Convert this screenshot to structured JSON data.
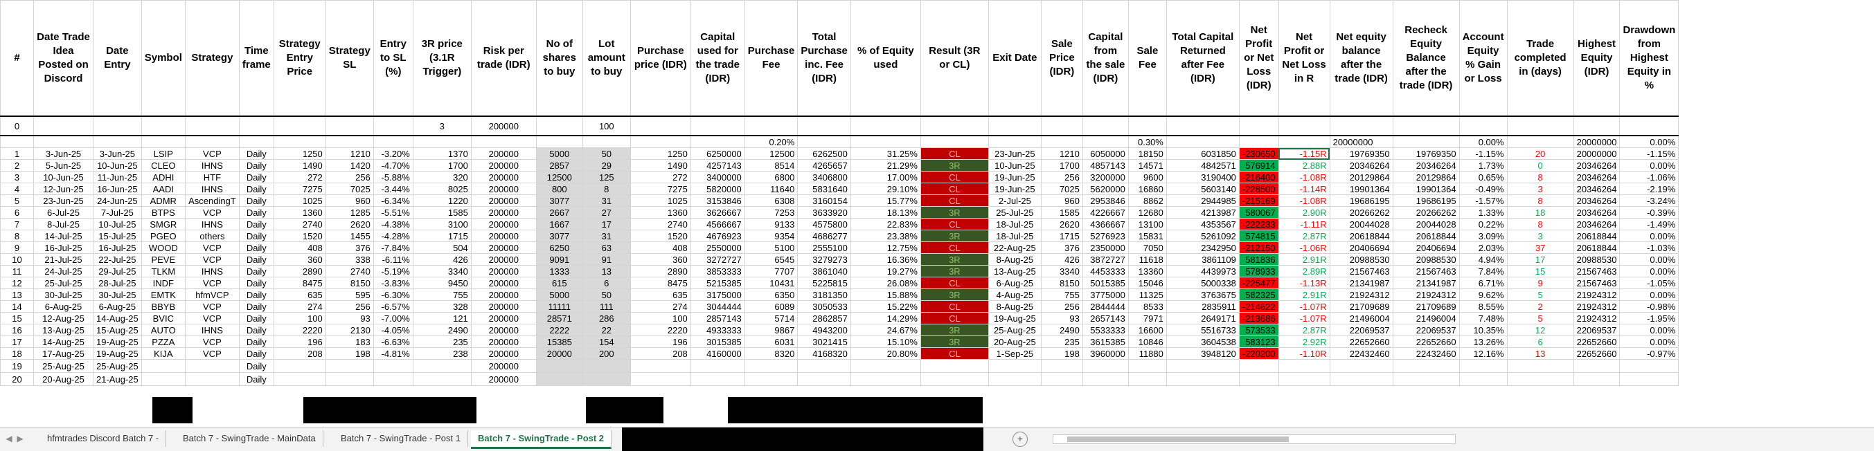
{
  "headers": [
    "#",
    "Date Trade Idea Posted on Discord",
    "Date Entry",
    "Symbol",
    "Strategy",
    "Time frame",
    "Strategy Entry Price",
    "Strategy SL",
    "Entry to SL (%)",
    "3R price (3.1R Trigger)",
    "Risk per trade (IDR)",
    "No of shares to buy",
    "Lot amount to buy",
    "Purchase price (IDR)",
    "Capital used for the trade (IDR)",
    "Purchase Fee",
    "Total Purchase inc. Fee (IDR)",
    "% of Equity used",
    "Result (3R or CL)",
    "Exit Date",
    "Sale Price (IDR)",
    "Capital from the sale (IDR)",
    "Sale Fee",
    "Total Capital Returned after Fee (IDR)",
    "Net Profit or Net Loss (IDR)",
    "Net Profit or Net Loss in R",
    "Net equity balance after the trade (IDR)",
    "Recheck Equity Balance after the trade (IDR)",
    "Account Equity % Gain or Loss",
    "Trade completed in (days)",
    "Highest Equity (IDR)",
    "Drawdown from Highest Equity in %"
  ],
  "row0": {
    "num": "0",
    "r3": "3",
    "risk": "200000",
    "lot": "100",
    "equity": "20000000",
    "gain": "0.00%",
    "highest": "20000000",
    "dd": "0.00%"
  },
  "fee_row": {
    "purchase_fee": "0.20%",
    "sale_fee": "0.30%"
  },
  "rows": [
    [
      "1",
      "3-Jun-25",
      "3-Jun-25",
      "LSIP",
      "VCP",
      "Daily",
      "1250",
      "1210",
      "-3.20%",
      "1370",
      "200000",
      "5000",
      "50",
      "1250",
      "6250000",
      "12500",
      "6262500",
      "31.25%",
      "CL",
      "23-Jun-25",
      "1210",
      "6050000",
      "18150",
      "6031850",
      "-230650",
      "-1.15R",
      "19769350",
      "19769350",
      "-1.15%",
      "20",
      "20000000",
      "-1.15%"
    ],
    [
      "2",
      "5-Jun-25",
      "10-Jun-25",
      "CLEO",
      "IHNS",
      "Daily",
      "1490",
      "1420",
      "-4.70%",
      "1700",
      "200000",
      "2857",
      "29",
      "1490",
      "4257143",
      "8514",
      "4265657",
      "21.29%",
      "3R",
      "10-Jun-25",
      "1700",
      "4857143",
      "14571",
      "4842571",
      "576914",
      "2.88R",
      "20346264",
      "20346264",
      "1.73%",
      "0",
      "20346264",
      "0.00%"
    ],
    [
      "3",
      "10-Jun-25",
      "11-Jun-25",
      "ADHI",
      "HTF",
      "Daily",
      "272",
      "256",
      "-5.88%",
      "320",
      "200000",
      "12500",
      "125",
      "272",
      "3400000",
      "6800",
      "3406800",
      "17.00%",
      "CL",
      "19-Jun-25",
      "256",
      "3200000",
      "9600",
      "3190400",
      "-216400",
      "-1.08R",
      "20129864",
      "20129864",
      "0.65%",
      "8",
      "20346264",
      "-1.06%"
    ],
    [
      "4",
      "12-Jun-25",
      "16-Jun-25",
      "AADI",
      "IHNS",
      "Daily",
      "7275",
      "7025",
      "-3.44%",
      "8025",
      "200000",
      "800",
      "8",
      "7275",
      "5820000",
      "11640",
      "5831640",
      "29.10%",
      "CL",
      "19-Jun-25",
      "7025",
      "5620000",
      "16860",
      "5603140",
      "-228500",
      "-1.14R",
      "19901364",
      "19901364",
      "-0.49%",
      "3",
      "20346264",
      "-2.19%"
    ],
    [
      "5",
      "23-Jun-25",
      "24-Jun-25",
      "ADMR",
      "AscendingT",
      "Daily",
      "1025",
      "960",
      "-6.34%",
      "1220",
      "200000",
      "3077",
      "31",
      "1025",
      "3153846",
      "6308",
      "3160154",
      "15.77%",
      "CL",
      "2-Jul-25",
      "960",
      "2953846",
      "8862",
      "2944985",
      "-215169",
      "-1.08R",
      "19686195",
      "19686195",
      "-1.57%",
      "8",
      "20346264",
      "-3.24%"
    ],
    [
      "6",
      "6-Jul-25",
      "7-Jul-25",
      "BTPS",
      "VCP",
      "Daily",
      "1360",
      "1285",
      "-5.51%",
      "1585",
      "200000",
      "2667",
      "27",
      "1360",
      "3626667",
      "7253",
      "3633920",
      "18.13%",
      "3R",
      "25-Jul-25",
      "1585",
      "4226667",
      "12680",
      "4213987",
      "580067",
      "2.90R",
      "20266262",
      "20266262",
      "1.33%",
      "18",
      "20346264",
      "-0.39%"
    ],
    [
      "7",
      "8-Jul-25",
      "10-Jul-25",
      "SMGR",
      "IHNS",
      "Daily",
      "2740",
      "2620",
      "-4.38%",
      "3100",
      "200000",
      "1667",
      "17",
      "2740",
      "4566667",
      "9133",
      "4575800",
      "22.83%",
      "CL",
      "18-Jul-25",
      "2620",
      "4366667",
      "13100",
      "4353567",
      "-222233",
      "-1.11R",
      "20044028",
      "20044028",
      "0.22%",
      "8",
      "20346264",
      "-1.49%"
    ],
    [
      "8",
      "14-Jul-25",
      "15-Jul-25",
      "PGEO",
      "others",
      "Daily",
      "1520",
      "1455",
      "-4.28%",
      "1715",
      "200000",
      "3077",
      "31",
      "1520",
      "4676923",
      "9354",
      "4686277",
      "23.38%",
      "3R",
      "18-Jul-25",
      "1715",
      "5276923",
      "15831",
      "5261092",
      "574815",
      "2.87R",
      "20618844",
      "20618844",
      "3.09%",
      "3",
      "20618844",
      "0.00%"
    ],
    [
      "9",
      "16-Jul-25",
      "16-Jul-25",
      "WOOD",
      "VCP",
      "Daily",
      "408",
      "376",
      "-7.84%",
      "504",
      "200000",
      "6250",
      "63",
      "408",
      "2550000",
      "5100",
      "2555100",
      "12.75%",
      "CL",
      "22-Aug-25",
      "376",
      "2350000",
      "7050",
      "2342950",
      "-212150",
      "-1.06R",
      "20406694",
      "20406694",
      "2.03%",
      "37",
      "20618844",
      "-1.03%"
    ],
    [
      "10",
      "21-Jul-25",
      "22-Jul-25",
      "PEVE",
      "VCP",
      "Daily",
      "360",
      "338",
      "-6.11%",
      "426",
      "200000",
      "9091",
      "91",
      "360",
      "3272727",
      "6545",
      "3279273",
      "16.36%",
      "3R",
      "8-Aug-25",
      "426",
      "3872727",
      "11618",
      "3861109",
      "581836",
      "2.91R",
      "20988530",
      "20988530",
      "4.94%",
      "17",
      "20988530",
      "0.00%"
    ],
    [
      "11",
      "24-Jul-25",
      "29-Jul-25",
      "TLKM",
      "IHNS",
      "Daily",
      "2890",
      "2740",
      "-5.19%",
      "3340",
      "200000",
      "1333",
      "13",
      "2890",
      "3853333",
      "7707",
      "3861040",
      "19.27%",
      "3R",
      "13-Aug-25",
      "3340",
      "4453333",
      "13360",
      "4439973",
      "578933",
      "2.89R",
      "21567463",
      "21567463",
      "7.84%",
      "15",
      "21567463",
      "0.00%"
    ],
    [
      "12",
      "25-Jul-25",
      "28-Jul-25",
      "INDF",
      "VCP",
      "Daily",
      "8475",
      "8150",
      "-3.83%",
      "9450",
      "200000",
      "615",
      "6",
      "8475",
      "5215385",
      "10431",
      "5225815",
      "26.08%",
      "CL",
      "6-Aug-25",
      "8150",
      "5015385",
      "15046",
      "5000338",
      "-225477",
      "-1.13R",
      "21341987",
      "21341987",
      "6.71%",
      "9",
      "21567463",
      "-1.05%"
    ],
    [
      "13",
      "30-Jul-25",
      "30-Jul-25",
      "EMTK",
      "hfmVCP",
      "Daily",
      "635",
      "595",
      "-6.30%",
      "755",
      "200000",
      "5000",
      "50",
      "635",
      "3175000",
      "6350",
      "3181350",
      "15.88%",
      "3R",
      "4-Aug-25",
      "755",
      "3775000",
      "11325",
      "3763675",
      "582325",
      "2.91R",
      "21924312",
      "21924312",
      "9.62%",
      "5",
      "21924312",
      "0.00%"
    ],
    [
      "14",
      "6-Aug-25",
      "6-Aug-25",
      "BBYB",
      "VCP",
      "Daily",
      "274",
      "256",
      "-6.57%",
      "328",
      "200000",
      "11111",
      "111",
      "274",
      "3044444",
      "6089",
      "3050533",
      "15.22%",
      "CL",
      "8-Aug-25",
      "256",
      "2844444",
      "8533",
      "2835911",
      "-214622",
      "-1.07R",
      "21709689",
      "21709689",
      "8.55%",
      "2",
      "21924312",
      "-0.98%"
    ],
    [
      "15",
      "12-Aug-25",
      "14-Aug-25",
      "BVIC",
      "VCP",
      "Daily",
      "100",
      "93",
      "-7.00%",
      "121",
      "200000",
      "28571",
      "286",
      "100",
      "2857143",
      "5714",
      "2862857",
      "14.29%",
      "CL",
      "19-Aug-25",
      "93",
      "2657143",
      "7971",
      "2649171",
      "-213686",
      "-1.07R",
      "21496004",
      "21496004",
      "7.48%",
      "5",
      "21924312",
      "-1.95%"
    ],
    [
      "16",
      "13-Aug-25",
      "15-Aug-25",
      "AUTO",
      "IHNS",
      "Daily",
      "2220",
      "2130",
      "-4.05%",
      "2490",
      "200000",
      "2222",
      "22",
      "2220",
      "4933333",
      "9867",
      "4943200",
      "24.67%",
      "3R",
      "25-Aug-25",
      "2490",
      "5533333",
      "16600",
      "5516733",
      "573533",
      "2.87R",
      "22069537",
      "22069537",
      "10.35%",
      "12",
      "22069537",
      "0.00%"
    ],
    [
      "17",
      "14-Aug-25",
      "19-Aug-25",
      "PZZA",
      "VCP",
      "Daily",
      "196",
      "183",
      "-6.63%",
      "235",
      "200000",
      "15385",
      "154",
      "196",
      "3015385",
      "6031",
      "3021415",
      "15.10%",
      "3R",
      "20-Aug-25",
      "235",
      "3615385",
      "10846",
      "3604538",
      "583123",
      "2.92R",
      "22652660",
      "22652660",
      "13.26%",
      "6",
      "22652660",
      "0.00%"
    ],
    [
      "18",
      "17-Aug-25",
      "19-Aug-25",
      "KIJA",
      "VCP",
      "Daily",
      "208",
      "198",
      "-4.81%",
      "238",
      "200000",
      "20000",
      "200",
      "208",
      "4160000",
      "8320",
      "4168320",
      "20.80%",
      "CL",
      "1-Sep-25",
      "198",
      "3960000",
      "11880",
      "3948120",
      "-220200",
      "-1.10R",
      "22432460",
      "22432460",
      "12.16%",
      "13",
      "22652660",
      "-0.97%"
    ]
  ],
  "pending_rows": [
    {
      "num": "19",
      "posted": "25-Aug-25",
      "entry": "25-Aug-25",
      "tf": "Daily",
      "risk": "200000"
    },
    {
      "num": "20",
      "posted": "20-Aug-25",
      "entry": "21-Aug-25",
      "tf": "Daily",
      "risk": "200000"
    }
  ],
  "tabs": [
    "hfmtrades Discord Batch 7 -",
    "Batch 7 - SwingTrade - MainData",
    "Batch 7 - SwingTrade - Post 1",
    "Batch 7 - SwingTrade - Post 2"
  ],
  "colors": {
    "loss_cell": "#ff0000",
    "profit_cell": "#00b050",
    "result_cl": "#c00000",
    "result_3r": "#375623",
    "tab_accent": "#217346"
  }
}
